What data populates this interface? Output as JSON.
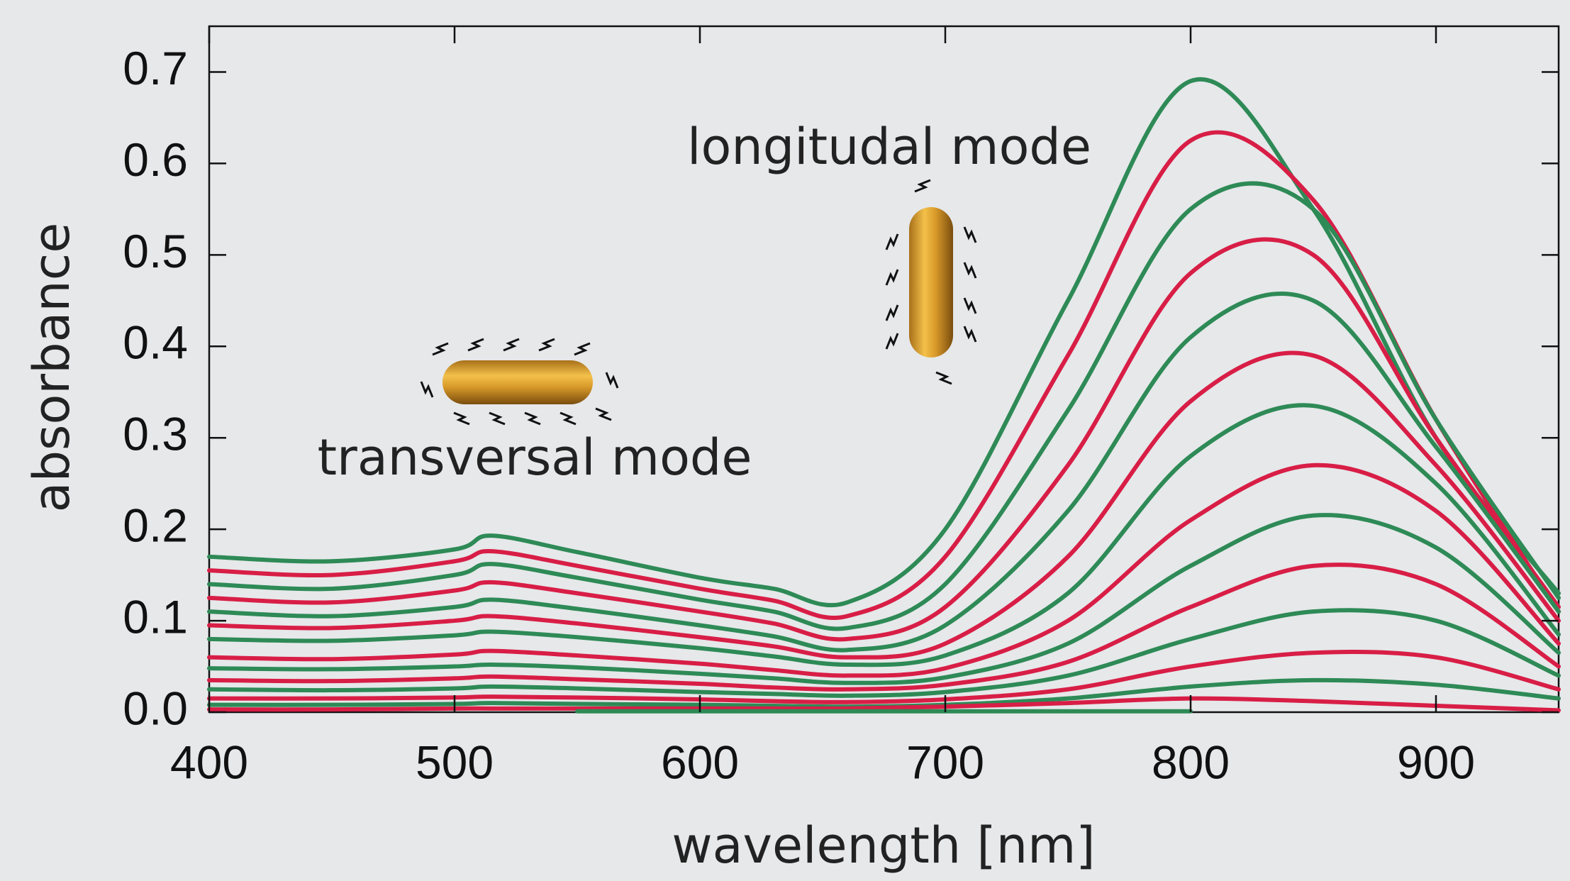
{
  "chart_data": {
    "type": "line",
    "xlabel": "wavelength [nm]",
    "ylabel": "absorbance",
    "annotations": [
      "longitudal mode",
      "transversal mode"
    ],
    "x": [
      400,
      450,
      500,
      515,
      550,
      600,
      630,
      660,
      700,
      750,
      800,
      850,
      900,
      950
    ],
    "xlim": [
      400,
      950
    ],
    "xticks": [
      400,
      500,
      600,
      700,
      800,
      900
    ],
    "ylim": [
      0,
      0.75
    ],
    "yticks": [
      {
        "value": 0,
        "label": "0.0"
      },
      0.1,
      0.2,
      0.3,
      0.4,
      0.5,
      0.6,
      0.7
    ],
    "series": [
      {
        "color": "#2e8a56",
        "values": [
          0.17,
          0.165,
          0.178,
          0.193,
          0.175,
          0.147,
          0.135,
          0.12,
          0.2,
          0.45,
          0.69,
          0.55,
          0.3,
          0.13
        ]
      },
      {
        "color": "#d81e46",
        "values": [
          0.155,
          0.15,
          0.165,
          0.176,
          0.16,
          0.135,
          0.122,
          0.105,
          0.17,
          0.39,
          0.625,
          0.56,
          0.32,
          0.11
        ]
      },
      {
        "color": "#2e8a56",
        "values": [
          0.14,
          0.135,
          0.15,
          0.162,
          0.147,
          0.123,
          0.11,
          0.092,
          0.14,
          0.33,
          0.55,
          0.55,
          0.32,
          0.125
        ]
      },
      {
        "color": "#d81e46",
        "values": [
          0.125,
          0.12,
          0.133,
          0.142,
          0.13,
          0.11,
          0.097,
          0.08,
          0.115,
          0.27,
          0.48,
          0.5,
          0.3,
          0.115
        ]
      },
      {
        "color": "#2e8a56",
        "values": [
          0.11,
          0.105,
          0.115,
          0.123,
          0.113,
          0.095,
          0.083,
          0.068,
          0.095,
          0.22,
          0.41,
          0.45,
          0.29,
          0.11
        ]
      },
      {
        "color": "#d81e46",
        "values": [
          0.095,
          0.092,
          0.1,
          0.105,
          0.097,
          0.082,
          0.072,
          0.06,
          0.075,
          0.17,
          0.34,
          0.39,
          0.27,
          0.1
        ]
      },
      {
        "color": "#2e8a56",
        "values": [
          0.08,
          0.078,
          0.084,
          0.088,
          0.082,
          0.07,
          0.061,
          0.052,
          0.062,
          0.13,
          0.28,
          0.335,
          0.25,
          0.085
        ]
      },
      {
        "color": "#d81e46",
        "values": [
          0.06,
          0.058,
          0.063,
          0.067,
          0.062,
          0.053,
          0.046,
          0.04,
          0.048,
          0.1,
          0.21,
          0.27,
          0.22,
          0.075
        ]
      },
      {
        "color": "#2e8a56",
        "values": [
          0.048,
          0.047,
          0.05,
          0.052,
          0.049,
          0.042,
          0.037,
          0.032,
          0.038,
          0.075,
          0.16,
          0.215,
          0.18,
          0.065
        ]
      },
      {
        "color": "#d81e46",
        "values": [
          0.035,
          0.034,
          0.037,
          0.039,
          0.036,
          0.031,
          0.027,
          0.025,
          0.03,
          0.055,
          0.115,
          0.16,
          0.14,
          0.05
        ]
      },
      {
        "color": "#2e8a56",
        "values": [
          0.025,
          0.024,
          0.026,
          0.028,
          0.026,
          0.022,
          0.02,
          0.018,
          0.022,
          0.04,
          0.08,
          0.11,
          0.1,
          0.04
        ]
      },
      {
        "color": "#d81e46",
        "values": [
          0.015,
          0.015,
          0.016,
          0.017,
          0.016,
          0.014,
          0.012,
          0.011,
          0.014,
          0.025,
          0.05,
          0.065,
          0.06,
          0.025
        ]
      },
      {
        "color": "#2e8a56",
        "values": [
          0.008,
          0.008,
          0.009,
          0.01,
          0.009,
          0.008,
          0.007,
          0.006,
          0.008,
          0.015,
          0.028,
          0.035,
          0.03,
          0.015
        ]
      },
      {
        "color": "#d81e46",
        "values": [
          0.003,
          0.003,
          0.004,
          0.004,
          0.004,
          0.004,
          0.004,
          0.004,
          0.006,
          0.01,
          0.015,
          0.012,
          0.007,
          0.002
        ]
      },
      {
        "color": "#2e8a56",
        "values": [
          null,
          null,
          null,
          null,
          0.001,
          0.001,
          0.001,
          0.001,
          0.001,
          0.001,
          0.001,
          null,
          null,
          null
        ]
      }
    ]
  }
}
